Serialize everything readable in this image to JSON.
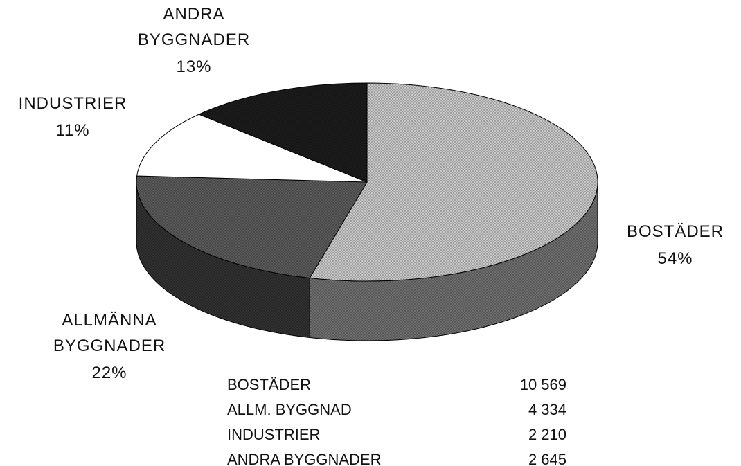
{
  "chart_data": {
    "type": "pie3d",
    "categories": [
      "BOSTÄDER",
      "ALLMÄNNA BYGGNADER",
      "INDUSTRIER",
      "ANDRA BYGGNADER"
    ],
    "values": [
      54,
      22,
      11,
      13
    ],
    "value_labels": [
      "54%",
      "22%",
      "11%",
      "13%"
    ],
    "colors": [
      "#c8c8c8",
      "#5a5a5a",
      "#ffffff",
      "#1c1c1c"
    ],
    "table": {
      "rows": [
        [
          "BOSTÄDER",
          "10 569"
        ],
        [
          "ALLM. BYGGNAD",
          "4 334"
        ],
        [
          "INDUSTRIER",
          "2 210"
        ],
        [
          "ANDRA BYGGNADER",
          "2 645"
        ]
      ]
    }
  }
}
